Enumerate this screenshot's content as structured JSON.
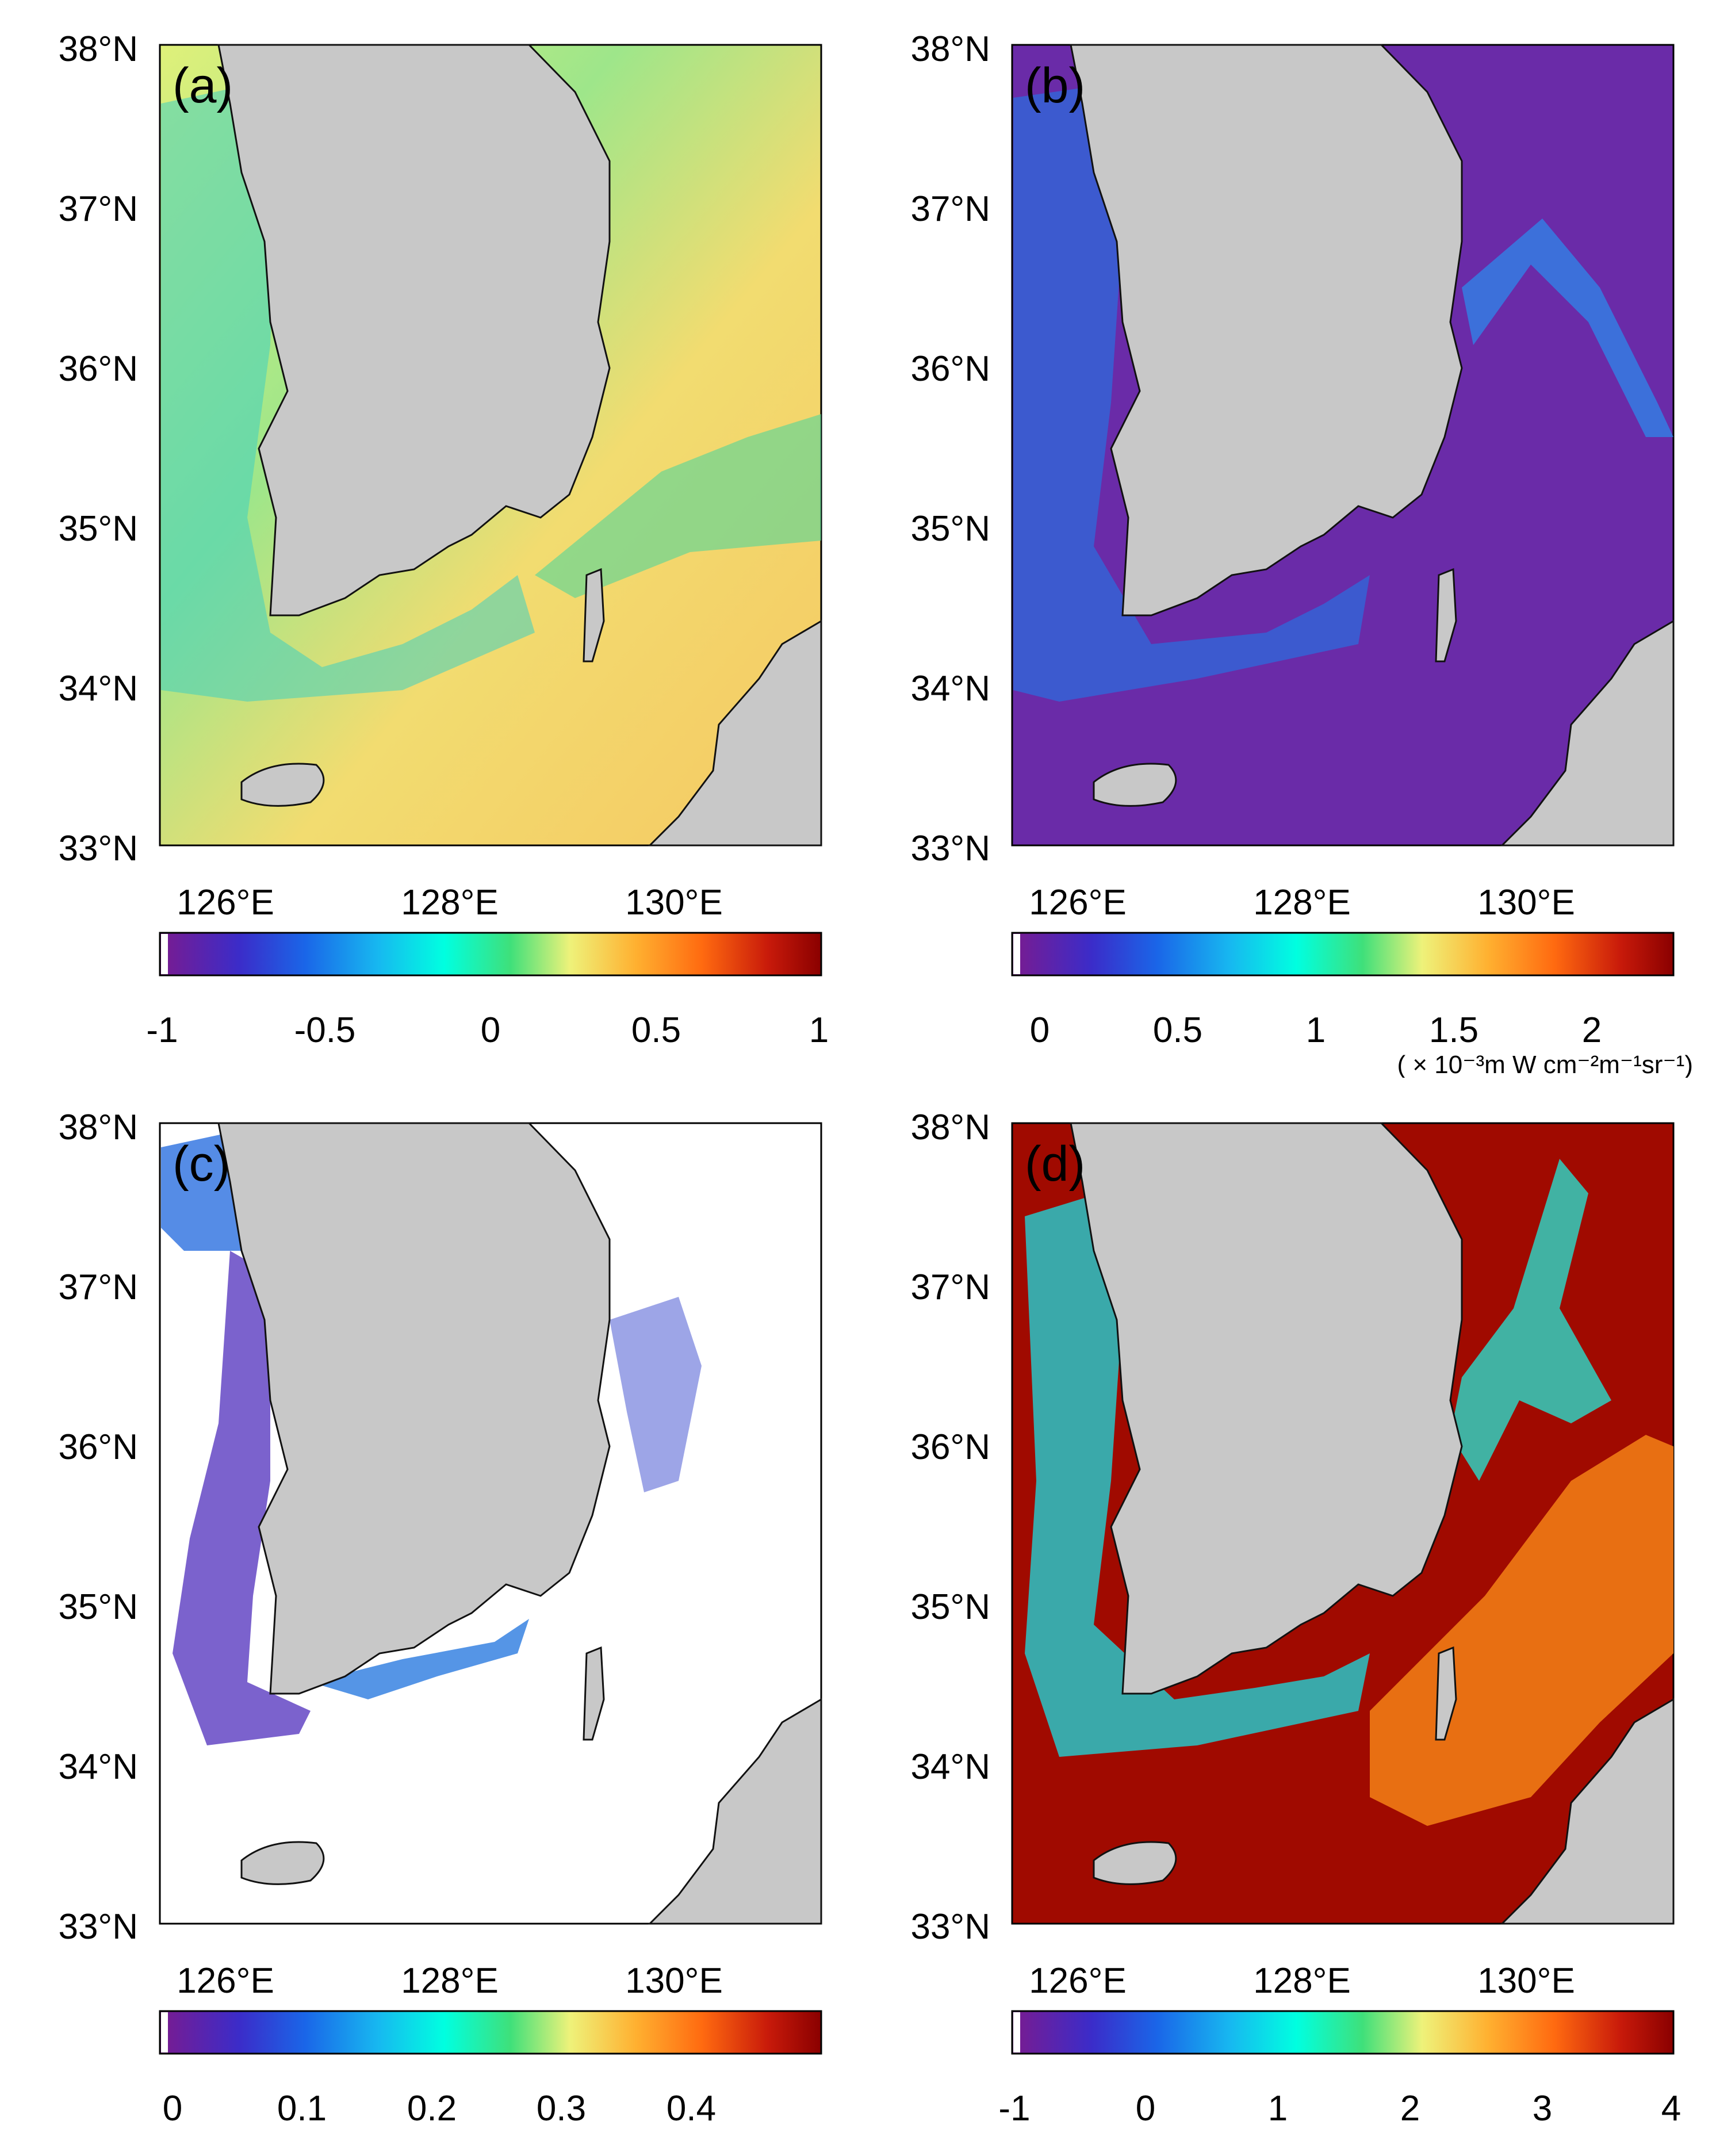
{
  "panels": [
    {
      "id": "a",
      "label": "(a)",
      "lat_labels": [
        "38°N",
        "37°N",
        "36°N",
        "35°N",
        "34°N",
        "33°N"
      ],
      "lon_labels": [
        "126°E",
        "128°E",
        "130°E"
      ],
      "colorbar_ticks": [
        "-1",
        "-0.5",
        "0",
        "0.5",
        "1"
      ],
      "colorbar_range": [
        -1,
        1
      ],
      "unit": ""
    },
    {
      "id": "b",
      "label": "(b)",
      "lat_labels": [
        "38°N",
        "37°N",
        "36°N",
        "35°N",
        "34°N",
        "33°N"
      ],
      "lon_labels": [
        "126°E",
        "128°E",
        "130°E"
      ],
      "colorbar_ticks": [
        "0",
        "0.5",
        "1",
        "1.5",
        "2"
      ],
      "colorbar_range": [
        -0.1,
        2.3
      ],
      "unit": "( × 10⁻³m W cm⁻²m⁻¹sr⁻¹)"
    },
    {
      "id": "c",
      "label": "(c)",
      "lat_labels": [
        "38°N",
        "37°N",
        "36°N",
        "35°N",
        "34°N",
        "33°N"
      ],
      "lon_labels": [
        "126°E",
        "128°E",
        "130°E"
      ],
      "colorbar_ticks": [
        "0",
        "0.1",
        "0.2",
        "0.3",
        "0.4"
      ],
      "colorbar_range": [
        -0.01,
        0.5
      ],
      "unit": ""
    },
    {
      "id": "d",
      "label": "(d)",
      "lat_labels": [
        "38°N",
        "37°N",
        "36°N",
        "35°N",
        "34°N",
        "33°N"
      ],
      "lon_labels": [
        "126°E",
        "128°E",
        "130°E"
      ],
      "colorbar_ticks": [
        "-1",
        "0",
        "1",
        "2",
        "3",
        "4"
      ],
      "colorbar_range": [
        -1,
        4
      ],
      "unit": ""
    }
  ],
  "map_extent": {
    "lon": [
      125.5,
      131.4
    ],
    "lat": [
      33,
      38
    ]
  },
  "colormap": [
    "#7a1b8f",
    "#3b2cc9",
    "#1a66e8",
    "#17b8f0",
    "#00ffe0",
    "#3fe07a",
    "#eef27a",
    "#ffb030",
    "#ff6a10",
    "#c81a0a",
    "#8a0000"
  ],
  "colors": {
    "land": "#c8c8c8",
    "coast": "#111111",
    "nodata": "#ffffff"
  }
}
